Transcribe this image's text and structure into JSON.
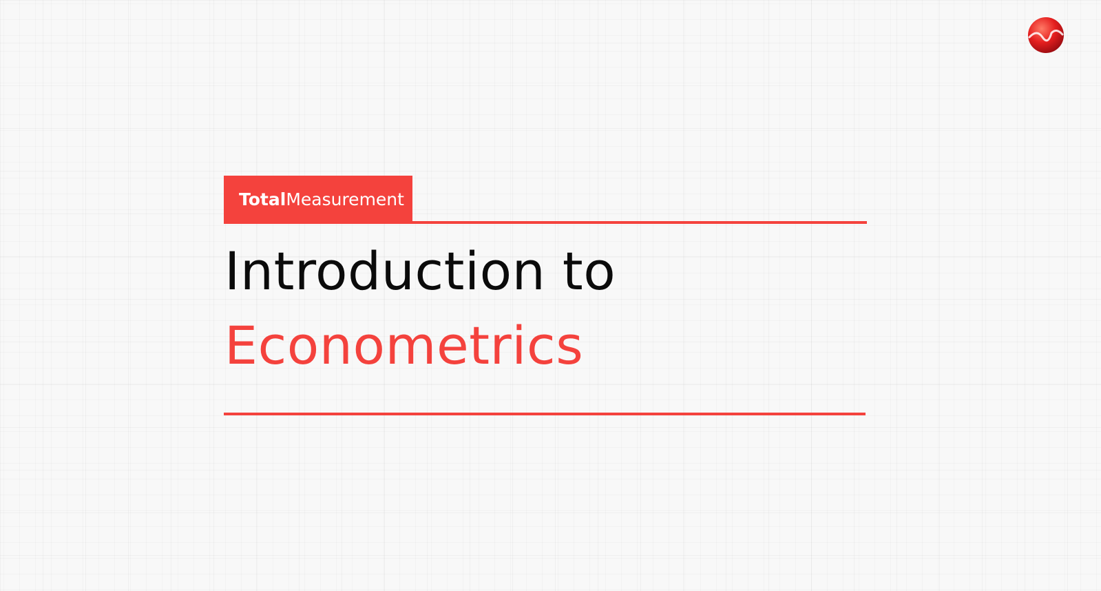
{
  "slide": {
    "brand": {
      "bold": "Total",
      "light": "Measurement"
    },
    "title": {
      "line1": "Introduction to",
      "line2": "Econometrics"
    }
  },
  "logo": {
    "icon": "total-measurement-logo-icon"
  },
  "colors": {
    "accent": "#f4423d",
    "title_text": "#0b0b0b",
    "background": "#f8f8f8"
  }
}
